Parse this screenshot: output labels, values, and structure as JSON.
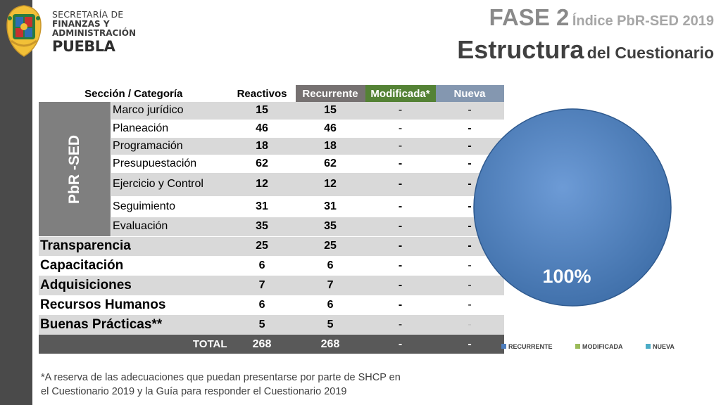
{
  "header": {
    "logo_text": [
      "SECRETARÍA DE",
      "FINANZAS Y",
      "ADMINISTRACIÓN",
      "PUEBLA"
    ],
    "title_line1_big": "FASE 2",
    "title_line1_small": "Índice PbR-SED 2019",
    "title_line2_big": "Estructura",
    "title_line2_small": "del Cuestionario"
  },
  "table": {
    "headers": [
      "Sección / Categoría",
      "Reactivos",
      "Recurrente",
      "Modificada*",
      "Nueva"
    ],
    "group_label": "PbR -SED",
    "sub_rows": [
      {
        "name": "Marco jurídico",
        "reactivos": "15",
        "recurrente": "15",
        "modificada": "-",
        "nueva": "-"
      },
      {
        "name": "Planeación",
        "reactivos": "46",
        "recurrente": "46",
        "modificada": "-",
        "nueva": "-"
      },
      {
        "name": "Programación",
        "reactivos": "18",
        "recurrente": "18",
        "modificada": "-",
        "nueva": "-"
      },
      {
        "name": "Presupuestación",
        "reactivos": "62",
        "recurrente": "62",
        "modificada": "-",
        "nueva": "-"
      },
      {
        "name": "Ejercicio y Control",
        "reactivos": "12",
        "recurrente": "12",
        "modificada": "-",
        "nueva": "-"
      },
      {
        "name": "Seguimiento",
        "reactivos": "31",
        "recurrente": "31",
        "modificada": "-",
        "nueva": "-"
      },
      {
        "name": "Evaluación",
        "reactivos": "35",
        "recurrente": "35",
        "modificada": "-",
        "nueva": "-"
      }
    ],
    "major_rows": [
      {
        "name": "Transparencia",
        "reactivos": "25",
        "recurrente": "25",
        "modificada": "-",
        "nueva": "-"
      },
      {
        "name": "Capacitación",
        "reactivos": "6",
        "recurrente": "6",
        "modificada": "-",
        "nueva": "-"
      },
      {
        "name": "Adquisiciones",
        "reactivos": "7",
        "recurrente": "7",
        "modificada": "-",
        "nueva": "-"
      },
      {
        "name": "Recursos Humanos",
        "reactivos": "6",
        "recurrente": "6",
        "modificada": "-",
        "nueva": "-"
      },
      {
        "name": "Buenas Prácticas**",
        "reactivos": "5",
        "recurrente": "5",
        "modificada": "-",
        "nueva": "-"
      }
    ],
    "total": {
      "label": "TOTAL",
      "reactivos": "268",
      "recurrente": "268",
      "modificada": "-",
      "nueva": "-"
    }
  },
  "footnote": [
    "*A reserva de las adecuaciones que puedan presentarse por parte de SHCP en",
    "el Cuestionario 2019 y la  Guía para responder el Cuestionario 2019"
  ],
  "chart_data": {
    "type": "pie",
    "categories": [
      "RECURRENTE",
      "MODIFICADA",
      "NUEVA"
    ],
    "values": [
      100,
      0,
      0
    ],
    "data_label": "100%",
    "colors": [
      "#4f7fbf",
      "#9bbb59",
      "#4bacc6"
    ],
    "legend_position": "bottom"
  }
}
